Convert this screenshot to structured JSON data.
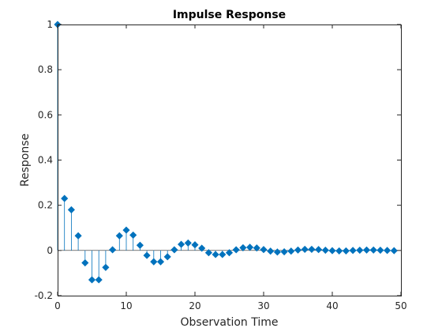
{
  "chart_data": {
    "type": "stem",
    "title": "Impulse Response",
    "xlabel": "Observation Time",
    "ylabel": "Response",
    "xlim": [
      0,
      50
    ],
    "ylim": [
      -0.2,
      1
    ],
    "xticks": [
      0,
      10,
      20,
      30,
      40,
      50
    ],
    "yticks": [
      -0.2,
      0,
      0.2,
      0.4,
      0.6,
      0.8,
      1
    ],
    "ytick_labels": [
      "-0.2",
      "0",
      "0.2",
      "0.4",
      "0.6",
      "0.8",
      "1"
    ],
    "grid": false,
    "marker": "diamond",
    "color": "#0072BD",
    "series": [
      {
        "x": [
          0,
          1,
          2,
          3,
          4,
          5,
          6,
          7,
          8,
          9,
          10,
          11,
          12,
          13,
          14,
          15,
          16,
          17,
          18,
          19,
          20,
          21,
          22,
          23,
          24,
          25,
          26,
          27,
          28,
          29,
          30,
          31,
          32,
          33,
          34,
          35,
          36,
          37,
          38,
          39,
          40,
          41,
          42,
          43,
          44,
          45,
          46,
          47,
          48,
          49
        ],
        "values": [
          1.0,
          0.23,
          0.18,
          0.065,
          -0.055,
          -0.13,
          -0.13,
          -0.075,
          0.003,
          0.065,
          0.09,
          0.068,
          0.023,
          -0.022,
          -0.05,
          -0.05,
          -0.028,
          0.003,
          0.027,
          0.033,
          0.025,
          0.01,
          -0.01,
          -0.018,
          -0.018,
          -0.01,
          0.003,
          0.012,
          0.014,
          0.011,
          0.004,
          -0.003,
          -0.007,
          -0.006,
          -0.003,
          0.002,
          0.005,
          0.005,
          0.004,
          0.001,
          -0.001,
          -0.002,
          -0.002,
          0.0,
          0.001,
          0.002,
          0.002,
          0.001,
          0.0,
          -0.001
        ]
      }
    ]
  }
}
